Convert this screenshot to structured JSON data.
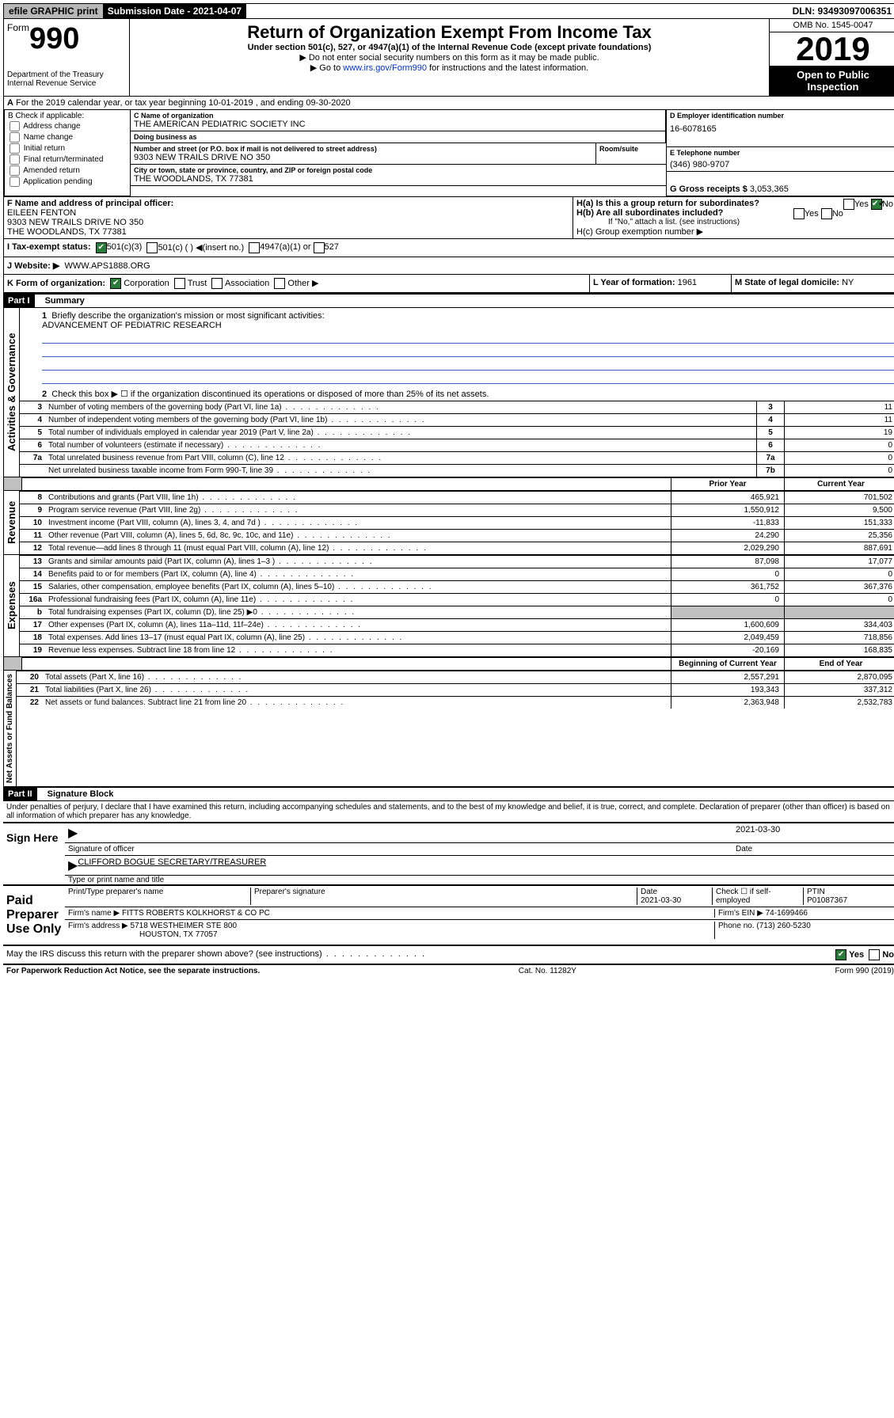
{
  "topbar": {
    "efile": "efile GRAPHIC print",
    "submission": "Submission Date - 2021-04-07",
    "dln": "DLN: 93493097006351"
  },
  "header": {
    "form_word": "Form",
    "form_num": "990",
    "dept": "Department of the Treasury Internal Revenue Service",
    "title": "Return of Organization Exempt From Income Tax",
    "subtitle": "Under section 501(c), 527, or 4947(a)(1) of the Internal Revenue Code (except private foundations)",
    "instr1": "▶ Do not enter social security numbers on this form as it may be made public.",
    "instr2_pre": "▶ Go to ",
    "instr2_link": "www.irs.gov/Form990",
    "instr2_post": " for instructions and the latest information.",
    "omb": "OMB No. 1545-0047",
    "year": "2019",
    "open": "Open to Public Inspection"
  },
  "sectionA": {
    "tax_year": "For the 2019 calendar year, or tax year beginning 10-01-2019    , and ending 09-30-2020"
  },
  "sectionB": {
    "label": "B Check if applicable:",
    "opts": [
      "Address change",
      "Name change",
      "Initial return",
      "Final return/terminated",
      "Amended return",
      "Application pending"
    ]
  },
  "sectionC": {
    "name_label": "C Name of organization",
    "name": "THE AMERICAN PEDIATRIC SOCIETY INC",
    "dba_label": "Doing business as",
    "dba": "",
    "addr_label": "Number and street (or P.O. box if mail is not delivered to street address)",
    "room_label": "Room/suite",
    "addr": "9303 NEW TRAILS DRIVE NO 350",
    "city_label": "City or town, state or province, country, and ZIP or foreign postal code",
    "city": "THE WOODLANDS, TX  77381"
  },
  "sectionD": {
    "label": "D Employer identification number",
    "value": "16-6078165"
  },
  "sectionE": {
    "label": "E Telephone number",
    "value": "(346) 980-9707"
  },
  "sectionG": {
    "label": "G Gross receipts $",
    "value": "3,053,365"
  },
  "sectionF": {
    "label": "F  Name and address of principal officer:",
    "name": "EILEEN FENTON",
    "addr1": "9303 NEW TRAILS DRIVE NO 350",
    "addr2": "THE WOODLANDS, TX  77381"
  },
  "sectionH": {
    "a": "H(a)  Is this a group return for subordinates?",
    "b": "H(b)  Are all subordinates included?",
    "b_note": "If \"No,\" attach a list. (see instructions)",
    "c": "H(c)  Group exemption number ▶"
  },
  "sectionI": {
    "label": "I  Tax-exempt status:",
    "opt1": "501(c)(3)",
    "opt2": "501(c) (  ) ◀(insert no.)",
    "opt3": "4947(a)(1) or",
    "opt4": "527"
  },
  "sectionJ": {
    "label": "J  Website: ▶",
    "value": "WWW.APS1888.ORG"
  },
  "sectionK": {
    "label": "K Form of organization:",
    "opts": [
      "Corporation",
      "Trust",
      "Association",
      "Other ▶"
    ]
  },
  "sectionL": {
    "label": "L Year of formation:",
    "value": "1961"
  },
  "sectionM": {
    "label": "M State of legal domicile:",
    "value": "NY"
  },
  "part1": {
    "title": "Part I",
    "subtitle": "Summary",
    "q1": "Briefly describe the organization's mission or most significant activities:",
    "mission": "ADVANCEMENT OF PEDIATRIC RESEARCH",
    "q2": "Check this box ▶ ☐  if the organization discontinued its operations or disposed of more than 25% of its net assets.",
    "rows": [
      {
        "n": "3",
        "t": "Number of voting members of the governing body (Part VI, line 1a)",
        "l": "3",
        "v": "11"
      },
      {
        "n": "4",
        "t": "Number of independent voting members of the governing body (Part VI, line 1b)",
        "l": "4",
        "v": "11"
      },
      {
        "n": "5",
        "t": "Total number of individuals employed in calendar year 2019 (Part V, line 2a)",
        "l": "5",
        "v": "19"
      },
      {
        "n": "6",
        "t": "Total number of volunteers (estimate if necessary)",
        "l": "6",
        "v": "0"
      },
      {
        "n": "7a",
        "t": "Total unrelated business revenue from Part VIII, column (C), line 12",
        "l": "7a",
        "v": "0"
      },
      {
        "n": "",
        "t": "Net unrelated business taxable income from Form 990-T, line 39",
        "l": "7b",
        "v": "0"
      }
    ],
    "col_prior": "Prior Year",
    "col_current": "Current Year",
    "revenue_rows": [
      {
        "n": "8",
        "t": "Contributions and grants (Part VIII, line 1h)",
        "p": "465,921",
        "c": "701,502"
      },
      {
        "n": "9",
        "t": "Program service revenue (Part VIII, line 2g)",
        "p": "1,550,912",
        "c": "9,500"
      },
      {
        "n": "10",
        "t": "Investment income (Part VIII, column (A), lines 3, 4, and 7d )",
        "p": "-11,833",
        "c": "151,333"
      },
      {
        "n": "11",
        "t": "Other revenue (Part VIII, column (A), lines 5, 6d, 8c, 9c, 10c, and 11e)",
        "p": "24,290",
        "c": "25,356"
      },
      {
        "n": "12",
        "t": "Total revenue—add lines 8 through 11 (must equal Part VIII, column (A), line 12)",
        "p": "2,029,290",
        "c": "887,691"
      }
    ],
    "expense_rows": [
      {
        "n": "13",
        "t": "Grants and similar amounts paid (Part IX, column (A), lines 1–3 )",
        "p": "87,098",
        "c": "17,077"
      },
      {
        "n": "14",
        "t": "Benefits paid to or for members (Part IX, column (A), line 4)",
        "p": "0",
        "c": "0"
      },
      {
        "n": "15",
        "t": "Salaries, other compensation, employee benefits (Part IX, column (A), lines 5–10)",
        "p": "361,752",
        "c": "367,376"
      },
      {
        "n": "16a",
        "t": "Professional fundraising fees (Part IX, column (A), line 11e)",
        "p": "0",
        "c": "0"
      },
      {
        "n": "b",
        "t": "Total fundraising expenses (Part IX, column (D), line 25) ▶0",
        "p": "",
        "c": "",
        "shade": true
      },
      {
        "n": "17",
        "t": "Other expenses (Part IX, column (A), lines 11a–11d, 11f–24e)",
        "p": "1,600,609",
        "c": "334,403"
      },
      {
        "n": "18",
        "t": "Total expenses. Add lines 13–17 (must equal Part IX, column (A), line 25)",
        "p": "2,049,459",
        "c": "718,856"
      },
      {
        "n": "19",
        "t": "Revenue less expenses. Subtract line 18 from line 12",
        "p": "-20,169",
        "c": "168,835"
      }
    ],
    "col_begin": "Beginning of Current Year",
    "col_end": "End of Year",
    "net_rows": [
      {
        "n": "20",
        "t": "Total assets (Part X, line 16)",
        "p": "2,557,291",
        "c": "2,870,095"
      },
      {
        "n": "21",
        "t": "Total liabilities (Part X, line 26)",
        "p": "193,343",
        "c": "337,312"
      },
      {
        "n": "22",
        "t": "Net assets or fund balances. Subtract line 21 from line 20",
        "p": "2,363,948",
        "c": "2,532,783"
      }
    ],
    "vlabels": {
      "gov": "Activities & Governance",
      "rev": "Revenue",
      "exp": "Expenses",
      "net": "Net Assets or Fund Balances"
    }
  },
  "part2": {
    "title": "Part II",
    "subtitle": "Signature Block",
    "declaration": "Under penalties of perjury, I declare that I have examined this return, including accompanying schedules and statements, and to the best of my knowledge and belief, it is true, correct, and complete. Declaration of preparer (other than officer) is based on all information of which preparer has any knowledge.",
    "sign_here": "Sign Here",
    "sig_date": "2021-03-30",
    "sig_officer_label": "Signature of officer",
    "date_label": "Date",
    "officer_name": "CLIFFORD BOGUE  SECRETARY/TREASURER",
    "officer_name_label": "Type or print name and title",
    "paid": "Paid Preparer Use Only",
    "prep_name_label": "Print/Type preparer's name",
    "prep_sig_label": "Preparer's signature",
    "prep_date_label": "Date",
    "prep_date": "2021-03-30",
    "check_label": "Check ☐ if self-employed",
    "ptin_label": "PTIN",
    "ptin": "P01087367",
    "firm_name_label": "Firm's name    ▶",
    "firm_name": "FITTS ROBERTS KOLKHORST & CO PC",
    "firm_ein_label": "Firm's EIN ▶",
    "firm_ein": "74-1699466",
    "firm_addr_label": "Firm's address ▶",
    "firm_addr1": "5718 WESTHEIMER STE 800",
    "firm_addr2": "HOUSTON, TX  77057",
    "phone_label": "Phone no.",
    "phone": "(713) 260-5230",
    "discuss": "May the IRS discuss this return with the preparer shown above? (see instructions)"
  },
  "footer": {
    "paperwork": "For Paperwork Reduction Act Notice, see the separate instructions.",
    "cat": "Cat. No. 11282Y",
    "form": "Form 990 (2019)"
  },
  "yes": "Yes",
  "no": "No"
}
